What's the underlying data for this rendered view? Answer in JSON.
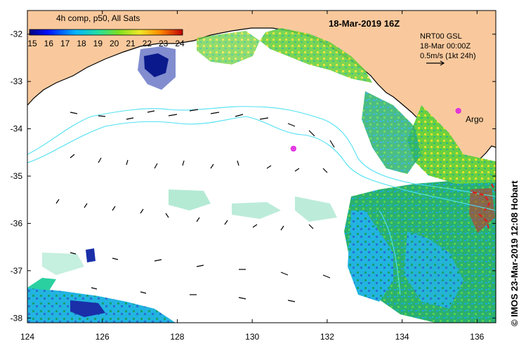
{
  "map": {
    "title": "18-Mar-2019 16Z",
    "colorbar_title": "4h comp, p50, All Sats",
    "colorbar_ticks": [
      "15",
      "16",
      "17",
      "18",
      "19",
      "20",
      "21",
      "22",
      "23",
      "24"
    ],
    "current_legend": {
      "line1": "NRT00 GSL",
      "line2": "18-Mar 00:00Z",
      "line3": "0.5m/s (1kt 24h)"
    },
    "argo_label": "Argo",
    "credit": "© IMOS 23-Mar-2019 12:08 Hobart",
    "lat_labels": [
      "-32",
      "-33",
      "-34",
      "-35",
      "-36",
      "-37",
      "-38"
    ],
    "lon_labels": [
      "124",
      "126",
      "128",
      "130",
      "132",
      "134",
      "136"
    ],
    "colors": {
      "land": "#f9c99d",
      "ocean": "#ffffff",
      "contour": "#4fe0f2",
      "argo": "#e020e0",
      "sst_cool": "#1f9ee0",
      "sst_mid": "#2ac86a",
      "sst_warm": "#f0e82a"
    },
    "sst_colorbar_range": [
      15,
      24
    ],
    "extent": {
      "lon": [
        124,
        136.5
      ],
      "lat": [
        -38.1,
        -31.5
      ]
    },
    "argo_floats": [
      {
        "lon": 135.5,
        "lat": -33.62
      },
      {
        "lon": 131.1,
        "lat": -34.42
      }
    ]
  }
}
